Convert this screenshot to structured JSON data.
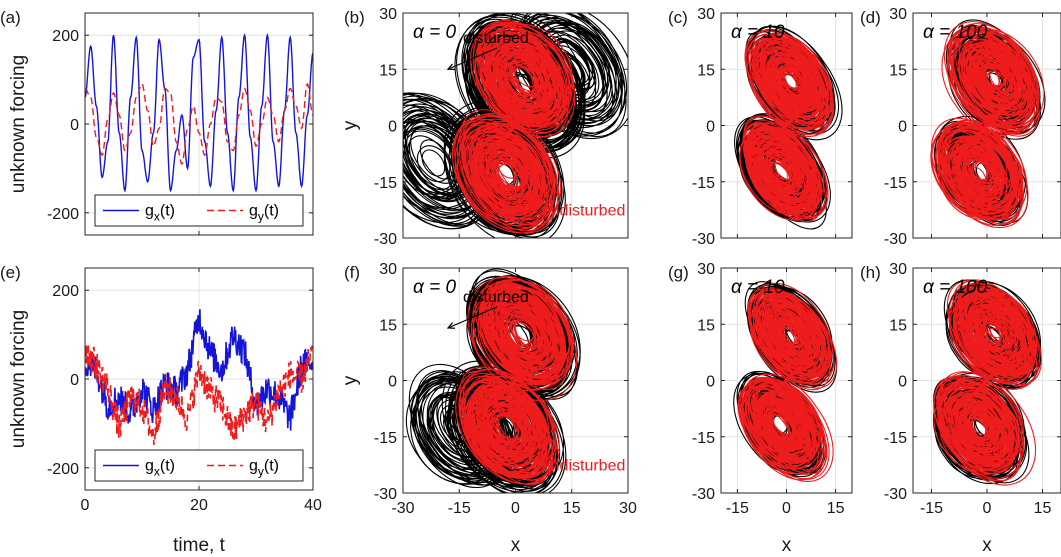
{
  "colors": {
    "black": "#000000",
    "red": "#ee1c1c",
    "blue": "#1515d8",
    "grid": "#e1e1e1"
  },
  "chart_data": [
    {
      "id": "a",
      "panel_label": "(a)",
      "type": "line",
      "title": "",
      "xlabel": "",
      "ylabel": "unknown forcing",
      "xlim": [
        0,
        40
      ],
      "ylim": [
        -250,
        250
      ],
      "xticks": [
        0,
        20,
        40
      ],
      "xtick_labels": [
        "",
        "",
        ""
      ],
      "yticks": [
        -200,
        0,
        200
      ],
      "ytick_labels": [
        "-200",
        "0",
        "200"
      ],
      "grid": true,
      "legend_position": "bottom-center",
      "series": [
        {
          "name": "g<sub>x</sub>(t)",
          "name_main": "g",
          "name_sub": "x",
          "name_tail": "(t)",
          "style": "solid",
          "color": "blue",
          "x": [
            0,
            1,
            2,
            3,
            4,
            5,
            6,
            7,
            8,
            9,
            10,
            11,
            12,
            13,
            14,
            15,
            16,
            17,
            18,
            19,
            20,
            21,
            22,
            23,
            24,
            25,
            26,
            27,
            28,
            29,
            30,
            31,
            32,
            33,
            34,
            35,
            36,
            37,
            38,
            39,
            40
          ],
          "y": [
            60,
            175,
            40,
            -120,
            -40,
            200,
            -20,
            -150,
            60,
            195,
            -60,
            -130,
            -20,
            190,
            80,
            -150,
            -60,
            20,
            -100,
            150,
            190,
            -40,
            -140,
            30,
            195,
            -20,
            -150,
            60,
            200,
            -30,
            -150,
            40,
            200,
            -40,
            -140,
            30,
            195,
            -20,
            -140,
            20,
            160
          ]
        },
        {
          "name": "g<sub>y</sub>(t)",
          "name_main": "g",
          "name_sub": "y",
          "name_tail": "(t)",
          "style": "dashed",
          "color": "red",
          "x": [
            0,
            1,
            2,
            3,
            4,
            5,
            6,
            7,
            8,
            9,
            10,
            11,
            12,
            13,
            14,
            15,
            16,
            17,
            18,
            19,
            20,
            21,
            22,
            23,
            24,
            25,
            26,
            27,
            28,
            29,
            30,
            31,
            32,
            33,
            34,
            35,
            36,
            37,
            38,
            39,
            40
          ],
          "y": [
            80,
            60,
            -30,
            -70,
            10,
            70,
            20,
            -60,
            -20,
            60,
            90,
            30,
            -50,
            -10,
            80,
            70,
            -40,
            -90,
            -10,
            40,
            -20,
            -70,
            0,
            60,
            50,
            -40,
            -60,
            20,
            80,
            30,
            -50,
            0,
            60,
            20,
            -40,
            30,
            80,
            40,
            -10,
            90,
            20
          ]
        }
      ]
    },
    {
      "id": "b",
      "panel_label": "(b)",
      "type": "line",
      "title": "",
      "annotation_alpha": "α = 0",
      "xlabel": "",
      "ylabel": "y",
      "xlim": [
        -30,
        30
      ],
      "ylim": [
        -30,
        30
      ],
      "xticks": [
        -30,
        -15,
        0,
        15,
        30
      ],
      "xtick_labels": [
        "",
        "",
        "",
        "",
        ""
      ],
      "yticks": [
        -30,
        -15,
        0,
        15,
        30
      ],
      "ytick_labels": [
        "-30",
        "-15",
        "0",
        "15",
        "30"
      ],
      "grid": true,
      "annotations": [
        {
          "text": "disturbed",
          "color": "black",
          "x": -14,
          "y": 22,
          "arrow_to": [
            -18,
            15
          ]
        },
        {
          "text": "undisturbed",
          "color": "red",
          "x": 7,
          "y": -24,
          "arrow_to": [
            6,
            -10
          ]
        }
      ],
      "series": [
        {
          "name": "",
          "color": "black",
          "kind": "disturbed",
          "centers": [
            [
              -10,
              -9
            ],
            [
              8,
              8
            ],
            [
              21,
              4
            ],
            [
              -23,
              5
            ]
          ],
          "radius": 13
        },
        {
          "name": "",
          "color": "red",
          "kind": "undisturbed",
          "centers": [
            [
              -9,
              -9
            ],
            [
              9,
              9
            ]
          ],
          "radius": 11
        }
      ]
    },
    {
      "id": "c",
      "panel_label": "(c)",
      "type": "line",
      "title": "",
      "annotation_alpha": "α = 10",
      "xlabel": "",
      "ylabel": "",
      "xlim": [
        -20,
        20
      ],
      "ylim": [
        -30,
        30
      ],
      "xticks": [
        -15,
        0,
        15
      ],
      "xtick_labels": [
        "",
        "",
        ""
      ],
      "yticks": [
        -30,
        -15,
        0,
        15,
        30
      ],
      "ytick_labels": [
        "-30",
        "-15",
        "0",
        "15",
        "30"
      ],
      "grid": true,
      "series": [
        {
          "name": "",
          "color": "black",
          "kind": "disturbed",
          "centers": [
            [
              -9,
              -9
            ],
            [
              9,
              9
            ]
          ],
          "radius": 10
        },
        {
          "name": "",
          "color": "red",
          "kind": "undisturbed",
          "centers": [
            [
              -9,
              -9
            ],
            [
              9,
              9
            ]
          ],
          "radius": 10
        }
      ]
    },
    {
      "id": "d",
      "panel_label": "(d)",
      "type": "line",
      "title": "",
      "annotation_alpha": "α = 100",
      "xlabel": "",
      "ylabel": "",
      "xlim": [
        -20,
        20
      ],
      "ylim": [
        -30,
        30
      ],
      "xticks": [
        -15,
        0,
        15
      ],
      "xtick_labels": [
        "",
        "",
        ""
      ],
      "yticks": [
        -30,
        -15,
        0,
        15,
        30
      ],
      "ytick_labels": [
        "-30",
        "-15",
        "0",
        "15",
        "30"
      ],
      "grid": true,
      "series": [
        {
          "name": "",
          "color": "black",
          "kind": "disturbed",
          "centers": [
            [
              -9,
              -9
            ],
            [
              9,
              9
            ]
          ],
          "radius": 10
        },
        {
          "name": "",
          "color": "red",
          "kind": "undisturbed",
          "centers": [
            [
              -9,
              -9
            ],
            [
              9,
              9
            ]
          ],
          "radius": 10
        }
      ]
    },
    {
      "id": "e",
      "panel_label": "(e)",
      "type": "line",
      "title": "",
      "xlabel": "time, t",
      "ylabel": "unknown forcing",
      "xlim": [
        0,
        40
      ],
      "ylim": [
        -250,
        250
      ],
      "xticks": [
        0,
        20,
        40
      ],
      "xtick_labels": [
        "0",
        "20",
        "40"
      ],
      "yticks": [
        -200,
        0,
        200
      ],
      "ytick_labels": [
        "-200",
        "0",
        "200"
      ],
      "grid": true,
      "legend_position": "bottom-center",
      "series": [
        {
          "name": "g<sub>x</sub>(t)",
          "name_main": "g",
          "name_sub": "x",
          "name_tail": "(t)",
          "style": "solid",
          "color": "blue",
          "x": [
            0,
            2,
            4,
            6,
            8,
            10,
            12,
            14,
            16,
            18,
            20,
            22,
            24,
            26,
            28,
            30,
            32,
            34,
            36,
            38,
            40
          ],
          "y": [
            40,
            20,
            -60,
            -40,
            -80,
            -20,
            -70,
            -10,
            -30,
            20,
            140,
            60,
            20,
            100,
            60,
            -60,
            -20,
            -40,
            -90,
            30,
            40
          ]
        },
        {
          "name": "g<sub>y</sub>(t)",
          "name_main": "g",
          "name_sub": "y",
          "name_tail": "(t)",
          "style": "dashed",
          "color": "red",
          "x": [
            0,
            2,
            4,
            6,
            8,
            10,
            12,
            14,
            16,
            18,
            20,
            22,
            24,
            26,
            28,
            30,
            32,
            34,
            36,
            38,
            40
          ],
          "y": [
            70,
            30,
            -20,
            -110,
            -40,
            -60,
            -130,
            -20,
            -40,
            -90,
            20,
            -30,
            -60,
            -120,
            -80,
            -50,
            -100,
            -30,
            10,
            0,
            60
          ]
        }
      ]
    },
    {
      "id": "f",
      "panel_label": "(f)",
      "type": "line",
      "title": "",
      "annotation_alpha": "α = 0",
      "xlabel": "x",
      "ylabel": "y",
      "xlim": [
        -30,
        30
      ],
      "ylim": [
        -30,
        30
      ],
      "xticks": [
        -30,
        -15,
        0,
        15,
        30
      ],
      "xtick_labels": [
        "-30",
        "-15",
        "0",
        "15",
        "30"
      ],
      "yticks": [
        -30,
        -15,
        0,
        15,
        30
      ],
      "ytick_labels": [
        "-30",
        "-15",
        "0",
        "15",
        "30"
      ],
      "grid": true,
      "annotations": [
        {
          "text": "disturbed",
          "color": "black",
          "x": -14,
          "y": 21,
          "arrow_to": [
            -18,
            14
          ]
        },
        {
          "text": "undisturbed",
          "color": "red",
          "x": 7,
          "y": -24,
          "arrow_to": [
            6,
            -10
          ]
        }
      ],
      "series": [
        {
          "name": "",
          "color": "black",
          "kind": "disturbed",
          "centers": [
            [
              -10,
              -9
            ],
            [
              8,
              9
            ],
            [
              -19,
              -2
            ]
          ],
          "radius": 12
        },
        {
          "name": "",
          "color": "red",
          "kind": "undisturbed",
          "centers": [
            [
              -9,
              -9
            ],
            [
              9,
              9
            ]
          ],
          "radius": 11
        }
      ]
    },
    {
      "id": "g",
      "panel_label": "(g)",
      "type": "line",
      "title": "",
      "annotation_alpha": "α = 10",
      "xlabel": "x",
      "ylabel": "",
      "xlim": [
        -20,
        20
      ],
      "ylim": [
        -30,
        30
      ],
      "xticks": [
        -15,
        0,
        15
      ],
      "xtick_labels": [
        "-15",
        "0",
        "15"
      ],
      "yticks": [
        -30,
        -15,
        0,
        15,
        30
      ],
      "ytick_labels": [
        "-30",
        "-15",
        "0",
        "15",
        "30"
      ],
      "grid": true,
      "series": [
        {
          "name": "",
          "color": "black",
          "kind": "disturbed",
          "centers": [
            [
              -9,
              -9
            ],
            [
              9,
              9
            ]
          ],
          "radius": 10
        },
        {
          "name": "",
          "color": "red",
          "kind": "undisturbed",
          "centers": [
            [
              -9,
              -9
            ],
            [
              9,
              9
            ]
          ],
          "radius": 10
        }
      ]
    },
    {
      "id": "h",
      "panel_label": "(h)",
      "type": "line",
      "title": "",
      "annotation_alpha": "α = 100",
      "xlabel": "x",
      "ylabel": "",
      "xlim": [
        -20,
        20
      ],
      "ylim": [
        -30,
        30
      ],
      "xticks": [
        -15,
        0,
        15
      ],
      "xtick_labels": [
        "-15",
        "0",
        "15"
      ],
      "yticks": [
        -30,
        -15,
        0,
        15,
        30
      ],
      "ytick_labels": [
        "-30",
        "-15",
        "0",
        "15",
        "30"
      ],
      "grid": true,
      "series": [
        {
          "name": "",
          "color": "black",
          "kind": "disturbed",
          "centers": [
            [
              -9,
              -9
            ],
            [
              9,
              9
            ]
          ],
          "radius": 10
        },
        {
          "name": "",
          "color": "red",
          "kind": "undisturbed",
          "centers": [
            [
              -9,
              -9
            ],
            [
              9,
              9
            ]
          ],
          "radius": 10
        }
      ]
    }
  ]
}
